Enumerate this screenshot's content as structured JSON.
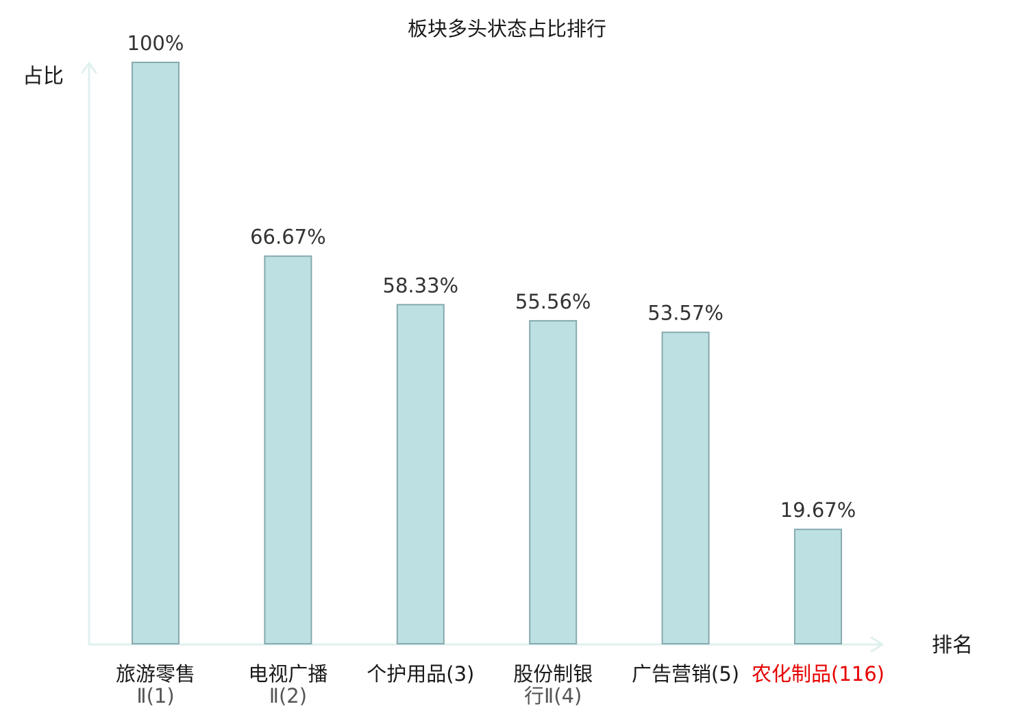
{
  "chart_data": {
    "type": "bar",
    "title": "板块多头状态占比排行",
    "ylabel": "占比",
    "xlabel": "排名",
    "ylim": [
      0,
      100
    ],
    "grid": false,
    "categories": [
      {
        "lines": [
          "旅游零售"
        ],
        "rank_line": "Ⅱ(1)",
        "highlight": false
      },
      {
        "lines": [
          "电视广播"
        ],
        "rank_line": "Ⅱ(2)",
        "highlight": false
      },
      {
        "lines": [
          "个护用品(3)"
        ],
        "rank_line": "",
        "highlight": false
      },
      {
        "lines": [
          "股份制银"
        ],
        "rank_line": "行Ⅱ(4)",
        "highlight": false
      },
      {
        "lines": [
          "广告营销(5)"
        ],
        "rank_line": "",
        "highlight": false
      },
      {
        "lines": [
          "农化制品(116)"
        ],
        "rank_line": "",
        "highlight": true
      }
    ],
    "values": [
      100,
      66.67,
      58.33,
      55.56,
      53.57,
      19.67
    ],
    "value_labels": [
      "100%",
      "66.67%",
      "58.33%",
      "55.56%",
      "53.57%",
      "19.67%"
    ],
    "colors": {
      "bar_fill": "#bde0e3",
      "bar_stroke": "#86a9ad",
      "axis": "#dff1ef",
      "highlight": "#e60000"
    }
  }
}
